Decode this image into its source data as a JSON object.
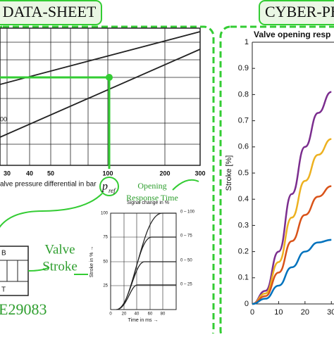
{
  "headers": {
    "left": "DATA-SHEET",
    "right": "CYBER-PH"
  },
  "datasheet": {
    "x_ticks": [
      "30",
      "40",
      "50",
      "100",
      "200",
      "300"
    ],
    "x_label": "alve pressure differential in bar →",
    "curve_label": "00",
    "pref": {
      "p": "p",
      "sub": "ref"
    },
    "opening": [
      "Opening",
      "Response Time"
    ],
    "stroke_chart": {
      "title": "Signal change in %",
      "y_label": "Stroke in % →",
      "x_label": "Time in ms →",
      "y_ticks": [
        "100",
        "75",
        "50",
        "25"
      ],
      "x_ticks": [
        "0",
        "20",
        "40",
        "60",
        "80"
      ],
      "curve_labels": [
        "0 – 100",
        "0 – 75",
        "0 – 50",
        "0 – 25"
      ]
    },
    "valve_stroke": [
      "Valve",
      "Stroke"
    ],
    "ports": [
      "B",
      "T"
    ],
    "part": "E29083"
  },
  "chart_data": {
    "type": "line",
    "title": "Valve opening resp",
    "y_label": "Stroke [%]",
    "x": [
      0,
      5,
      10,
      15,
      20,
      25,
      30
    ],
    "series": [
      {
        "color": "#7b2d8e",
        "values": [
          0,
          0.05,
          0.2,
          0.42,
          0.6,
          0.73,
          0.81
        ]
      },
      {
        "color": "#edb120",
        "values": [
          0,
          0.04,
          0.16,
          0.33,
          0.47,
          0.57,
          0.63
        ]
      },
      {
        "color": "#d95319",
        "values": [
          0,
          0.03,
          0.12,
          0.24,
          0.34,
          0.41,
          0.45
        ]
      },
      {
        "color": "#0072bd",
        "values": [
          0,
          0.02,
          0.07,
          0.14,
          0.2,
          0.235,
          0.245
        ]
      }
    ],
    "xlim": [
      0,
      31
    ],
    "ylim": [
      0,
      1
    ],
    "xticks": [
      0,
      10,
      20,
      30
    ],
    "yticks": [
      0,
      0.1,
      0.2,
      0.3,
      0.4,
      0.5,
      0.6,
      0.7,
      0.8,
      0.9,
      1
    ]
  }
}
